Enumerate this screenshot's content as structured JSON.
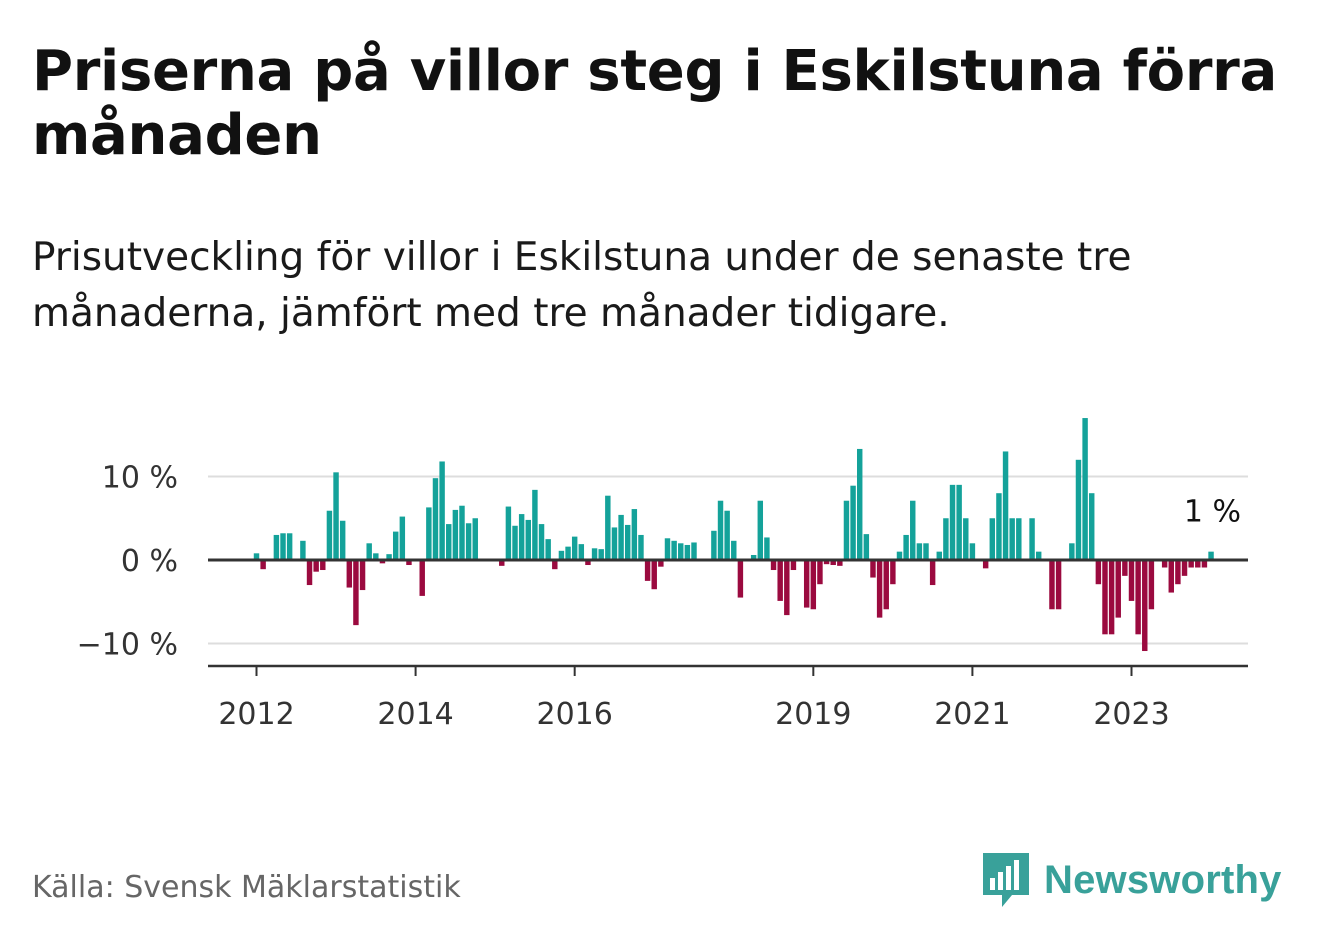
{
  "header": {
    "title": "Priserna på villor steg i Eskilstuna förra månaden",
    "subtitle": "Prisutveckling för villor i Eskilstuna under de senaste tre månaderna, jämfört med tre månader tidigare."
  },
  "footer": {
    "source": "Källa: Svensk Mäklarstatistik",
    "brand": "Newsworthy"
  },
  "colors": {
    "positive": "#14a29a",
    "negative": "#9b0a3f",
    "grid": "#dddddd",
    "axis": "#333333",
    "brand": "#39a19a"
  },
  "chart_data": {
    "type": "bar",
    "title": "",
    "xlabel": "",
    "ylabel": "",
    "x_ticks": [
      "2012",
      "2014",
      "2016",
      "2019",
      "2021",
      "2023"
    ],
    "y_ticks": [
      "10 %",
      "0 %",
      "−10 %"
    ],
    "y_tick_values": [
      10,
      0,
      -10
    ],
    "ylim": [
      -12.5,
      18
    ],
    "grid": true,
    "annotation": {
      "label": "1 %",
      "value": 1
    },
    "series": [
      {
        "start": "2012-01",
        "frequency": "monthly",
        "values": [
          0.8,
          -1.1,
          null,
          3.0,
          3.2,
          3.2,
          null,
          2.3,
          -3.0,
          -1.4,
          -1.2,
          5.9,
          10.5,
          4.7,
          -3.3,
          -7.8,
          -3.6,
          2.0,
          0.8,
          -0.4,
          0.7,
          3.4,
          5.2,
          -0.6,
          null,
          -4.3,
          6.3,
          9.8,
          11.8,
          4.3,
          6.0,
          6.5,
          4.4,
          5.0,
          null,
          null,
          null,
          -0.7,
          6.4,
          4.1,
          5.5,
          4.8,
          8.4,
          4.3,
          2.5,
          -1.1,
          1.1,
          1.6,
          2.8,
          1.9,
          -0.6,
          1.4,
          1.3,
          7.7,
          3.9,
          5.4,
          4.2,
          6.1,
          3.0,
          -2.5,
          -3.5,
          -0.8,
          2.6,
          2.3,
          2.0,
          1.8,
          2.1,
          null,
          null,
          3.5,
          7.1,
          5.9,
          2.3,
          -4.5,
          null,
          0.6,
          7.1,
          2.7,
          -1.2,
          -4.9,
          -6.6,
          -1.2,
          null,
          -5.7,
          -5.9,
          -2.9,
          -0.5,
          -0.6,
          -0.7,
          7.1,
          8.9,
          13.3,
          3.1,
          -2.1,
          -6.9,
          -5.9,
          -2.9,
          1.0,
          3.0,
          7.1,
          2.0,
          2.0,
          -3.0,
          1.0,
          5.0,
          9.0,
          9.0,
          5.0,
          2.0,
          null,
          -1.0,
          5.0,
          8.0,
          13.0,
          5.0,
          5.0,
          null,
          5.0,
          1.0,
          null,
          -5.9,
          -5.9,
          null,
          2.0,
          12.0,
          17.0,
          8.0,
          -2.9,
          -8.9,
          -8.9,
          -6.9,
          -1.9,
          -4.9,
          -8.9,
          -10.9,
          -5.9,
          null,
          -0.9,
          -3.9,
          -2.9,
          -1.9,
          -0.9,
          -0.9,
          -0.9,
          1.0
        ]
      }
    ]
  }
}
